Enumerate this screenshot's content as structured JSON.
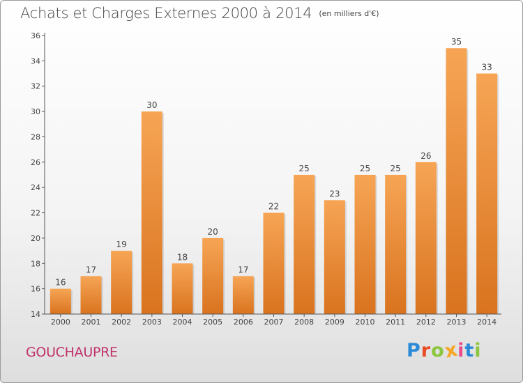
{
  "header": {
    "title": "Achats et Charges Externes 2000 à 2014",
    "unit": "(en milliers d'€)"
  },
  "footer": {
    "place": "GOUCHAUPRE",
    "logo": "Proxiti",
    "logo_letters": [
      {
        "ch": "P",
        "color": "#2a8ad8"
      },
      {
        "ch": "r",
        "color": "#e94b24"
      },
      {
        "ch": "o",
        "color": "#8cc63f"
      },
      {
        "ch": "x",
        "color": "#f5a623"
      },
      {
        "ch": "i",
        "color": "#e94b8a"
      },
      {
        "ch": "t",
        "color": "#2a8ad8"
      },
      {
        "ch": "i",
        "color": "#8cc63f"
      }
    ]
  },
  "colors": {
    "bar_light": "#f6a555",
    "bar_dark": "#d9731f",
    "axis": "#555555",
    "text": "#444444"
  },
  "chart_data": {
    "type": "bar",
    "title": "Achats et Charges Externes 2000 à 2014",
    "subtitle": "(en milliers d'€)",
    "categories": [
      "2000",
      "2001",
      "2002",
      "2003",
      "2004",
      "2005",
      "2006",
      "2007",
      "2008",
      "2009",
      "2010",
      "2011",
      "2012",
      "2013",
      "2014"
    ],
    "values": [
      16,
      17,
      19,
      30,
      18,
      20,
      17,
      22,
      25,
      23,
      25,
      25,
      26,
      35,
      33
    ],
    "data_labels": [
      "16",
      "17",
      "19",
      "30",
      "18",
      "20",
      "17",
      "22",
      "25",
      "23",
      "25",
      "25",
      "26",
      "35",
      "33"
    ],
    "ylim": [
      14,
      36
    ],
    "yticks": [
      14,
      16,
      18,
      20,
      22,
      24,
      26,
      28,
      30,
      32,
      34,
      36
    ],
    "ytick_labels": [
      "14",
      "16",
      "18",
      "20",
      "22",
      "24",
      "26",
      "28",
      "30",
      "32",
      "34",
      "36"
    ],
    "xlabel": "",
    "ylabel": "",
    "grid": false,
    "legend": "none"
  }
}
